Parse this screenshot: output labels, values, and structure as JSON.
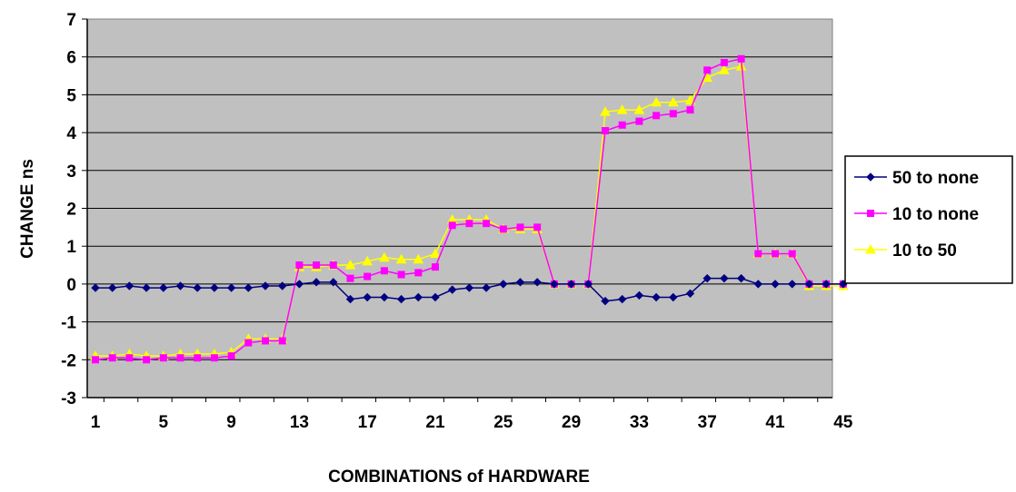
{
  "chart_data": {
    "type": "line",
    "title": "",
    "xlabel": "COMBINATIONS of HARDWARE",
    "ylabel": "CHANGE ns",
    "x": [
      1,
      2,
      3,
      4,
      5,
      6,
      7,
      8,
      9,
      10,
      11,
      12,
      13,
      14,
      15,
      16,
      17,
      18,
      19,
      20,
      21,
      22,
      23,
      24,
      25,
      26,
      27,
      28,
      29,
      30,
      31,
      32,
      33,
      34,
      35,
      36,
      37,
      38,
      39,
      40,
      41,
      42,
      43,
      44,
      45
    ],
    "x_tick_labels": [
      "1",
      "5",
      "9",
      "13",
      "17",
      "21",
      "25",
      "29",
      "33",
      "37",
      "41",
      "45"
    ],
    "x_tick_values": [
      1,
      5,
      9,
      13,
      17,
      21,
      25,
      29,
      33,
      37,
      41,
      45
    ],
    "ylim": [
      -3,
      7
    ],
    "y_tick_labels": [
      "-3",
      "-2",
      "-1",
      "0",
      "1",
      "2",
      "3",
      "4",
      "5",
      "6",
      "7"
    ],
    "y_tick_values": [
      -3,
      -2,
      -1,
      0,
      1,
      2,
      3,
      4,
      5,
      6,
      7
    ],
    "grid": "horizontal",
    "plot_background": "#C0C0C0",
    "legend_position": "right",
    "series": [
      {
        "name": "50 to none",
        "color": "#000080",
        "marker": "diamond",
        "values": [
          -0.1,
          -0.1,
          -0.05,
          -0.1,
          -0.1,
          -0.05,
          -0.1,
          -0.1,
          -0.1,
          -0.1,
          -0.05,
          -0.05,
          0.0,
          0.05,
          0.05,
          -0.4,
          -0.35,
          -0.35,
          -0.4,
          -0.35,
          -0.35,
          -0.15,
          -0.1,
          -0.1,
          0.0,
          0.05,
          0.05,
          0.0,
          0.0,
          0.0,
          -0.45,
          -0.4,
          -0.3,
          -0.35,
          -0.35,
          -0.25,
          0.15,
          0.15,
          0.15,
          0.0,
          0.0,
          0.0,
          0.0,
          0.0,
          0.0
        ]
      },
      {
        "name": "10 to none",
        "color": "#FF00FF",
        "marker": "square",
        "values": [
          -2.0,
          -1.95,
          -1.95,
          -2.0,
          -1.95,
          -1.95,
          -1.95,
          -1.95,
          -1.9,
          -1.55,
          -1.5,
          -1.5,
          0.5,
          0.5,
          0.5,
          0.15,
          0.2,
          0.35,
          0.25,
          0.3,
          0.45,
          1.55,
          1.6,
          1.6,
          1.45,
          1.5,
          1.5,
          0.0,
          0.0,
          0.0,
          4.05,
          4.2,
          4.3,
          4.45,
          4.5,
          4.6,
          5.65,
          5.85,
          5.95,
          0.8,
          0.8,
          0.8,
          0.0,
          0.0,
          0.0
        ]
      },
      {
        "name": "10 to 50",
        "color": "#FFFF00",
        "marker": "triangle",
        "values": [
          -1.9,
          -1.9,
          -1.85,
          -1.9,
          -1.9,
          -1.85,
          -1.85,
          -1.85,
          -1.8,
          -1.45,
          -1.45,
          -1.45,
          0.45,
          0.45,
          0.5,
          0.5,
          0.6,
          0.7,
          0.65,
          0.65,
          0.8,
          1.7,
          1.7,
          1.7,
          1.45,
          1.45,
          1.45,
          0.0,
          0.0,
          0.0,
          4.55,
          4.6,
          4.6,
          4.8,
          4.8,
          4.85,
          5.45,
          5.65,
          5.75,
          0.8,
          0.8,
          0.8,
          -0.05,
          -0.05,
          -0.05
        ]
      }
    ]
  }
}
